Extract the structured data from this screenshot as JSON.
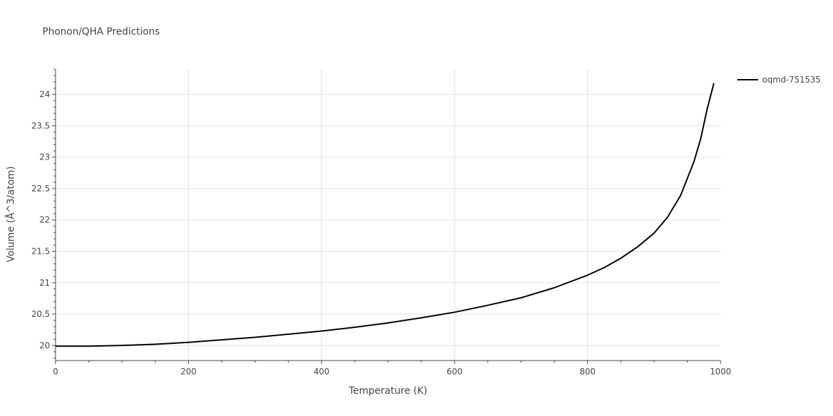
{
  "chart_data": {
    "type": "line",
    "title": "Phonon/QHA Predictions",
    "xlabel": "Temperature (K)",
    "ylabel": "Volume (Å^3/atom)",
    "xlim": [
      0,
      1000
    ],
    "ylim": [
      19.76,
      24.4
    ],
    "xticks": [
      0,
      200,
      400,
      600,
      800,
      1000
    ],
    "xtick_labels": [
      "0",
      "200",
      "400",
      "600",
      "800",
      "1000"
    ],
    "yticks": [
      20,
      20.5,
      21,
      21.5,
      22,
      22.5,
      23,
      23.5,
      24
    ],
    "ytick_labels": [
      "20",
      "20.5",
      "21",
      "21.5",
      "22",
      "22.5",
      "23",
      "23.5",
      "24"
    ],
    "grid": true,
    "legend_position": "top-right",
    "series": [
      {
        "name": "oqmd-751535",
        "color": "#000000",
        "x": [
          0,
          50,
          100,
          150,
          200,
          250,
          300,
          350,
          400,
          450,
          500,
          550,
          600,
          650,
          700,
          750,
          800,
          825,
          850,
          875,
          900,
          920,
          940,
          960,
          970,
          980,
          990
        ],
        "y": [
          19.99,
          19.99,
          20.0,
          20.02,
          20.05,
          20.09,
          20.13,
          20.18,
          20.23,
          20.29,
          20.36,
          20.44,
          20.53,
          20.64,
          20.76,
          20.92,
          21.12,
          21.24,
          21.39,
          21.57,
          21.79,
          22.04,
          22.39,
          22.93,
          23.29,
          23.77,
          24.18
        ]
      }
    ]
  }
}
